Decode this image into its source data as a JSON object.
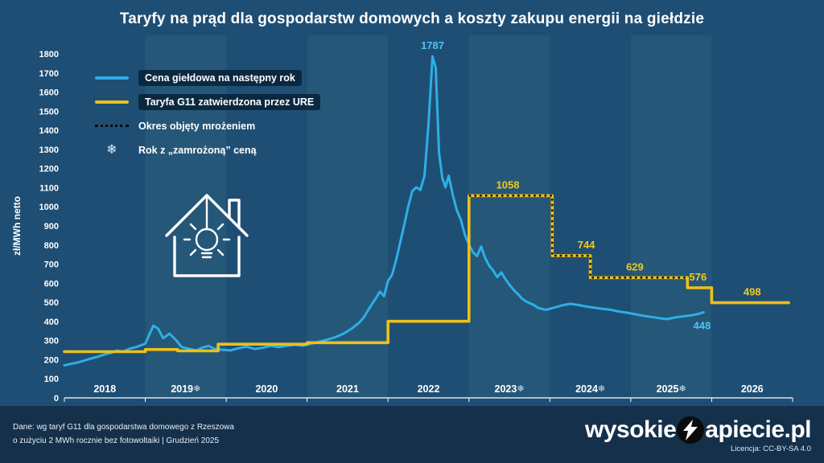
{
  "title": "Taryfy na prąd dla gospodarstw domowych a koszty zakupu energii na giełdzie",
  "colors": {
    "background": "#1f4e74",
    "band_light": "#255778",
    "footer_bg": "#14304b",
    "series_blue": "#2eaee6",
    "series_yellow": "#edc01b",
    "freeze_dots": "#0a0a0a",
    "label_blue": "#4ec3f5",
    "label_yellow": "#f4c91f",
    "axis_text": "#ffffff"
  },
  "icons": {
    "snowflake": "❄",
    "house": "house-lightbulb-icon",
    "brand_bolt": "lightning-bolt-icon"
  },
  "y_axis": {
    "label": "zł/MWh netto",
    "min": 0,
    "max": 1800,
    "step": 100
  },
  "x_axis": {
    "years": [
      {
        "label": "2018",
        "frozen": false
      },
      {
        "label": "2019",
        "frozen": true
      },
      {
        "label": "2020",
        "frozen": false
      },
      {
        "label": "2021",
        "frozen": false
      },
      {
        "label": "2022",
        "frozen": false
      },
      {
        "label": "2023",
        "frozen": true
      },
      {
        "label": "2024",
        "frozen": true
      },
      {
        "label": "2025",
        "frozen": true
      },
      {
        "label": "2026",
        "frozen": false
      }
    ]
  },
  "legend": [
    {
      "label": "Cena giełdowa na następny rok",
      "swatch": "line",
      "color": "#2eaee6",
      "boxed": true
    },
    {
      "label": "Taryfa G11 zatwierdzona przez URE",
      "swatch": "line",
      "color": "#edc01b",
      "boxed": true
    },
    {
      "label": "Okres objęty mrożeniem",
      "swatch": "dotted",
      "color": "#0a0a0a",
      "boxed": false
    },
    {
      "label": "Rok z „zamrożoną” ceną",
      "swatch": "snowflake",
      "symbol": "❄",
      "boxed": false
    }
  ],
  "chart_data": {
    "type": "line",
    "title": "Taryfy na prąd dla gospodarstw domowych a koszty zakupu energii na giełdzie",
    "ylabel": "zł/MWh netto",
    "ylim": [
      0,
      1800
    ],
    "ytick_step": 100,
    "xlim": [
      2018,
      2027
    ],
    "grid": false,
    "legend_position": "top-left",
    "series": [
      {
        "name": "Cena giełdowa na następny rok",
        "color": "#2eaee6",
        "points": [
          [
            2018,
            170
          ],
          [
            2018.08,
            178
          ],
          [
            2018.17,
            186
          ],
          [
            2018.25,
            196
          ],
          [
            2018.33,
            206
          ],
          [
            2018.42,
            216
          ],
          [
            2018.5,
            228
          ],
          [
            2018.58,
            236
          ],
          [
            2018.65,
            248
          ],
          [
            2018.72,
            242
          ],
          [
            2018.8,
            256
          ],
          [
            2018.9,
            268
          ],
          [
            2019,
            284
          ],
          [
            2019.05,
            332
          ],
          [
            2019.1,
            378
          ],
          [
            2019.16,
            362
          ],
          [
            2019.22,
            312
          ],
          [
            2019.3,
            336
          ],
          [
            2019.38,
            302
          ],
          [
            2019.45,
            266
          ],
          [
            2019.55,
            256
          ],
          [
            2019.63,
            248
          ],
          [
            2019.7,
            262
          ],
          [
            2019.78,
            272
          ],
          [
            2019.85,
            258
          ],
          [
            2019.95,
            252
          ],
          [
            2020.05,
            248
          ],
          [
            2020.15,
            260
          ],
          [
            2020.25,
            268
          ],
          [
            2020.35,
            256
          ],
          [
            2020.45,
            262
          ],
          [
            2020.55,
            272
          ],
          [
            2020.65,
            266
          ],
          [
            2020.75,
            272
          ],
          [
            2020.85,
            278
          ],
          [
            2020.95,
            273
          ],
          [
            2021.05,
            284
          ],
          [
            2021.15,
            294
          ],
          [
            2021.25,
            305
          ],
          [
            2021.35,
            318
          ],
          [
            2021.45,
            336
          ],
          [
            2021.55,
            362
          ],
          [
            2021.65,
            396
          ],
          [
            2021.7,
            422
          ],
          [
            2021.75,
            456
          ],
          [
            2021.8,
            490
          ],
          [
            2021.85,
            522
          ],
          [
            2021.9,
            556
          ],
          [
            2021.95,
            532
          ],
          [
            2022,
            612
          ],
          [
            2022.05,
            644
          ],
          [
            2022.1,
            722
          ],
          [
            2022.15,
            812
          ],
          [
            2022.2,
            904
          ],
          [
            2022.25,
            1002
          ],
          [
            2022.3,
            1082
          ],
          [
            2022.35,
            1102
          ],
          [
            2022.4,
            1088
          ],
          [
            2022.45,
            1162
          ],
          [
            2022.5,
            1432
          ],
          [
            2022.55,
            1787
          ],
          [
            2022.59,
            1726
          ],
          [
            2022.63,
            1282
          ],
          [
            2022.67,
            1152
          ],
          [
            2022.71,
            1102
          ],
          [
            2022.75,
            1162
          ],
          [
            2022.8,
            1062
          ],
          [
            2022.85,
            982
          ],
          [
            2022.9,
            932
          ],
          [
            2022.95,
            852
          ],
          [
            2023,
            802
          ],
          [
            2023.05,
            762
          ],
          [
            2023.1,
            742
          ],
          [
            2023.15,
            792
          ],
          [
            2023.2,
            732
          ],
          [
            2023.25,
            692
          ],
          [
            2023.3,
            666
          ],
          [
            2023.35,
            632
          ],
          [
            2023.4,
            656
          ],
          [
            2023.45,
            622
          ],
          [
            2023.5,
            592
          ],
          [
            2023.55,
            566
          ],
          [
            2023.6,
            546
          ],
          [
            2023.65,
            522
          ],
          [
            2023.7,
            506
          ],
          [
            2023.75,
            496
          ],
          [
            2023.8,
            486
          ],
          [
            2023.85,
            472
          ],
          [
            2023.9,
            466
          ],
          [
            2023.95,
            461
          ],
          [
            2024.05,
            472
          ],
          [
            2024.15,
            484
          ],
          [
            2024.25,
            492
          ],
          [
            2024.35,
            486
          ],
          [
            2024.45,
            478
          ],
          [
            2024.55,
            472
          ],
          [
            2024.65,
            466
          ],
          [
            2024.75,
            461
          ],
          [
            2024.85,
            452
          ],
          [
            2024.95,
            446
          ],
          [
            2025.05,
            438
          ],
          [
            2025.15,
            430
          ],
          [
            2025.25,
            424
          ],
          [
            2025.35,
            417
          ],
          [
            2025.45,
            412
          ],
          [
            2025.55,
            421
          ],
          [
            2025.65,
            427
          ],
          [
            2025.75,
            432
          ],
          [
            2025.82,
            438
          ],
          [
            2025.9,
            448
          ]
        ]
      },
      {
        "name": "Taryfa G11 zatwierdzona przez URE",
        "color": "#edc01b",
        "points": [
          [
            2018,
            242
          ],
          [
            2019,
            242
          ],
          [
            2019,
            253
          ],
          [
            2019.4,
            253
          ],
          [
            2019.4,
            246
          ],
          [
            2019.9,
            246
          ],
          [
            2019.9,
            281
          ],
          [
            2021,
            281
          ],
          [
            2021,
            289
          ],
          [
            2022,
            289
          ],
          [
            2022,
            401
          ],
          [
            2023,
            401
          ],
          [
            2023,
            1058
          ],
          [
            2024.03,
            1058
          ],
          [
            2024.03,
            744
          ],
          [
            2024.5,
            744
          ],
          [
            2024.5,
            629
          ],
          [
            2025.7,
            629
          ],
          [
            2025.7,
            576
          ],
          [
            2026,
            576
          ],
          [
            2026,
            498
          ],
          [
            2026.95,
            498
          ]
        ]
      }
    ],
    "frozen_overlay": {
      "name": "Okres objęty mrożeniem",
      "points": [
        [
          2023,
          1058
        ],
        [
          2024.03,
          1058
        ],
        [
          2024.03,
          744
        ],
        [
          2024.5,
          744
        ],
        [
          2024.5,
          629
        ],
        [
          2025.7,
          629
        ]
      ]
    },
    "frozen_years": [
      "2019",
      "2023",
      "2024",
      "2025"
    ],
    "annotations": [
      {
        "text": "1787",
        "x": 2022.55,
        "y": 1787,
        "placement": "above",
        "color": "blue"
      },
      {
        "text": "1058",
        "x": 2023.48,
        "y": 1058,
        "placement": "above",
        "color": "yellow"
      },
      {
        "text": "744",
        "x": 2024.45,
        "y": 744,
        "placement": "above",
        "color": "yellow"
      },
      {
        "text": "629",
        "x": 2025.05,
        "y": 629,
        "placement": "above",
        "color": "yellow"
      },
      {
        "text": "576",
        "x": 2025.83,
        "y": 576,
        "placement": "above",
        "color": "yellow"
      },
      {
        "text": "498",
        "x": 2026.5,
        "y": 498,
        "placement": "above",
        "color": "yellow"
      },
      {
        "text": "448",
        "x": 2025.88,
        "y": 448,
        "placement": "below",
        "color": "blue"
      }
    ]
  },
  "footer": {
    "source_line1": "Dane: wg taryf G11 dla gospodarstwa domowego z Rzeszowa",
    "source_line2": "o zużyciu 2 MWh rocznie bez fotowoltaiki  |  Grudzień 2025",
    "brand_prefix": "wysokie",
    "brand_suffix": "apiecie.pl",
    "license": "Licencja: CC-BY-SA 4.0"
  }
}
